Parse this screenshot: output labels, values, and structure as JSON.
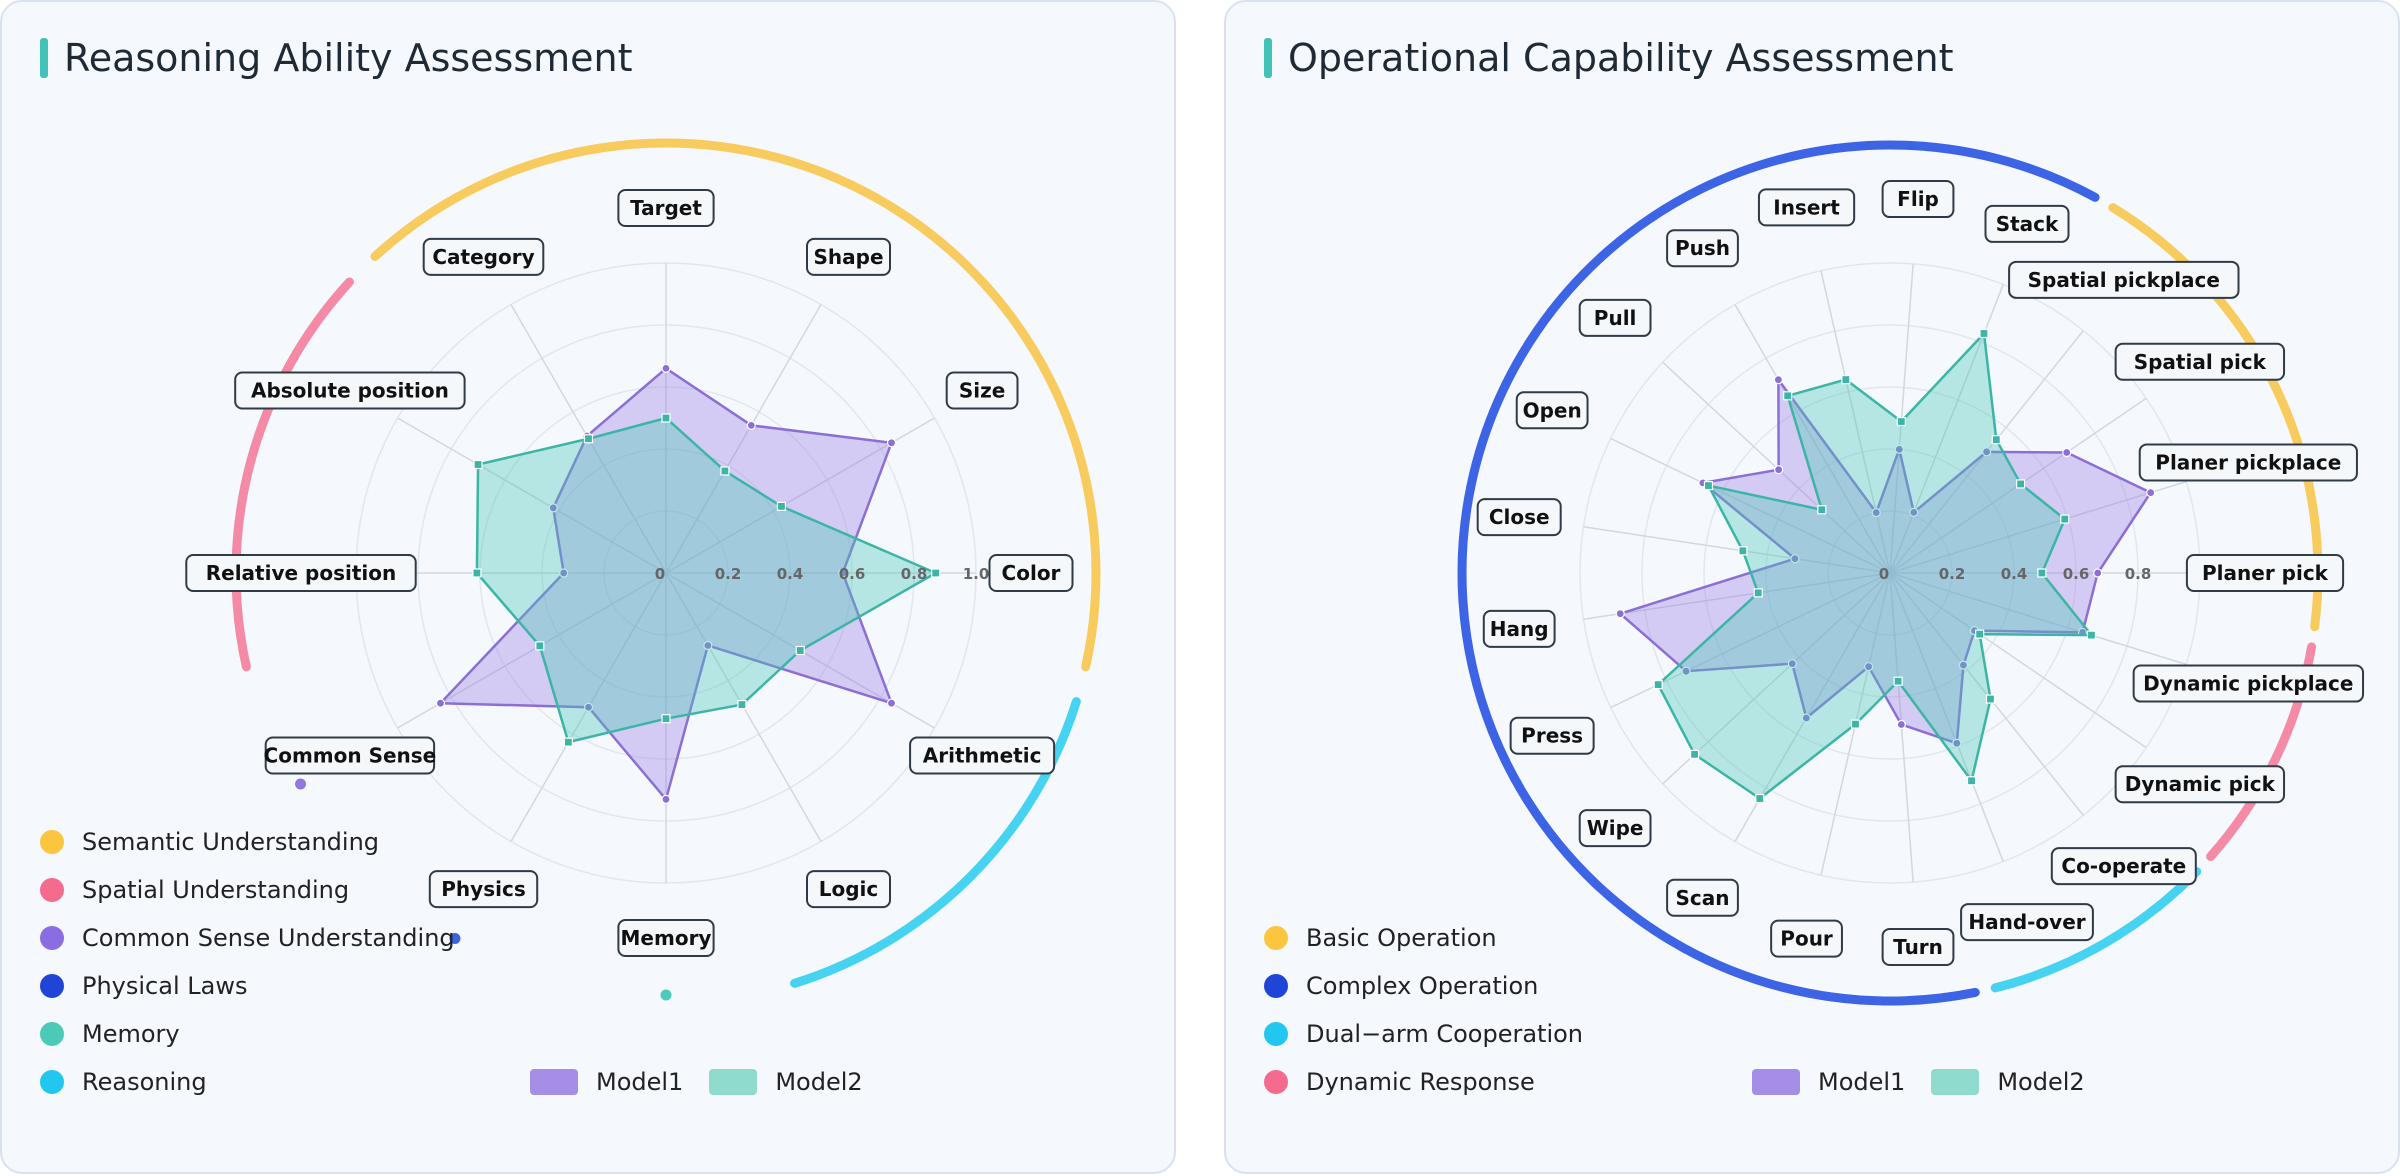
{
  "colors": {
    "model1_fill": "rgba(150,120,225,0.35)",
    "model1_stroke": "#8b6fd4",
    "model2_fill": "rgba(80,200,185,0.38)",
    "model2_stroke": "#3cb5a6",
    "grid": "#e2e6ee",
    "tick_text": "#666666",
    "label_border": "#2f3b47",
    "label_bg": "#f4f8fb",
    "title_accent": "#43c2b8"
  },
  "charts": [
    {
      "title": "Reasoning Ability Assessment",
      "legend": [
        {
          "label": "Semantic Understanding",
          "color": "#fbc53f"
        },
        {
          "label": "Spatial Understanding",
          "color": "#f56b8d"
        },
        {
          "label": "Common Sense Understanding",
          "color": "#8a6de0"
        },
        {
          "label": "Physical Laws",
          "color": "#1f44d6"
        },
        {
          "label": "Memory",
          "color": "#4ccab8"
        },
        {
          "label": "Reasoning",
          "color": "#22c7f0"
        }
      ],
      "model_legend": [
        {
          "label": "Model1",
          "color": "#a58ee6"
        },
        {
          "label": "Model2",
          "color": "#8fdccf"
        }
      ]
    },
    {
      "title": "Operational Capability Assessment",
      "legend": [
        {
          "label": "Basic Operation",
          "color": "#fbc53f"
        },
        {
          "label": "Complex Operation",
          "color": "#1f44d6"
        },
        {
          "label": "Dual−arm Cooperation",
          "color": "#22c7f0"
        },
        {
          "label": "Dynamic Response",
          "color": "#f56b8d"
        }
      ],
      "model_legend": [
        {
          "label": "Model1",
          "color": "#a58ee6"
        },
        {
          "label": "Model2",
          "color": "#8fdccf"
        }
      ]
    }
  ],
  "chart_data": [
    {
      "type": "radar",
      "title": "Reasoning Ability Assessment",
      "axes": [
        "Color",
        "Size",
        "Shape",
        "Target",
        "Category",
        "Absolute position",
        "Relative position",
        "Common Sense",
        "Physics",
        "Memory",
        "Logic",
        "Arithmetic"
      ],
      "rlim": [
        0,
        1.0
      ],
      "rticks": [
        "0",
        "0.2",
        "0.4",
        "0.6",
        "0.8",
        "1.0"
      ],
      "series": [
        {
          "name": "Model1",
          "values": [
            0.57,
            0.84,
            0.55,
            0.66,
            0.51,
            0.42,
            0.33,
            0.84,
            0.5,
            0.73,
            0.27,
            0.84
          ]
        },
        {
          "name": "Model2",
          "values": [
            0.87,
            0.43,
            0.38,
            0.5,
            0.5,
            0.7,
            0.61,
            0.47,
            0.63,
            0.47,
            0.49,
            0.5
          ]
        }
      ],
      "category_arcs": [
        {
          "name": "Semantic Understanding",
          "color": "#f7cb5e",
          "from_axis": "Color",
          "to_axis": "Category"
        },
        {
          "name": "Spatial Understanding",
          "color": "#f48aa6",
          "from_axis": "Absolute position",
          "to_axis": "Relative position"
        },
        {
          "name": "Common Sense Understanding",
          "color": "#8f78de",
          "marker_axis": "Common Sense"
        },
        {
          "name": "Physical Laws",
          "color": "#3e64e6",
          "marker_axis": "Physics"
        },
        {
          "name": "Memory",
          "color": "#4fcbbd",
          "marker_axis": "Memory"
        },
        {
          "name": "Reasoning",
          "color": "#46d3f2",
          "from_axis": "Logic",
          "to_axis": "Arithmetic"
        }
      ]
    },
    {
      "type": "radar",
      "title": "Operational Capability Assessment",
      "axes": [
        "Planer pick",
        "Planer pickplace",
        "Spatial pick",
        "Spatial pickplace",
        "Stack",
        "Flip",
        "Insert",
        "Push",
        "Pull",
        "Open",
        "Close",
        "Hang",
        "Press",
        "Wipe",
        "Scan",
        "Pour",
        "Turn",
        "Hand-over",
        "Co-operate",
        "Dynamic pick",
        "Dynamic pickplace"
      ],
      "rlim": [
        0,
        1.0
      ],
      "rticks": [
        "0",
        "0.2",
        "0.4",
        "0.6",
        "0.8",
        "1.0"
      ],
      "series": [
        {
          "name": "Model1",
          "values": [
            0.67,
            0.88,
            0.69,
            0.5,
            0.21,
            0.4,
            0.2,
            0.72,
            0.49,
            0.67,
            0.31,
            0.88,
            0.73,
            0.43,
            0.54,
            0.31,
            0.49,
            0.59,
            0.38,
            0.33,
            0.65
          ]
        },
        {
          "name": "Model2",
          "values": [
            0.49,
            0.59,
            0.51,
            0.55,
            0.83,
            0.49,
            0.64,
            0.66,
            0.3,
            0.65,
            0.48,
            0.43,
            0.83,
            0.86,
            0.84,
            0.5,
            0.35,
            0.72,
            0.52,
            0.35,
            0.68
          ]
        }
      ],
      "category_arcs": [
        {
          "name": "Basic Operation",
          "color": "#f7cb5e",
          "from_axis": "Planer pick",
          "to_axis": "Spatial pickplace"
        },
        {
          "name": "Complex Operation",
          "color": "#3e64e6",
          "from_axis": "Stack",
          "to_axis": "Turn"
        },
        {
          "name": "Dual−arm Cooperation",
          "color": "#46d3f2",
          "from_axis": "Hand-over",
          "to_axis": "Co-operate"
        },
        {
          "name": "Dynamic Response",
          "color": "#f48aa6",
          "from_axis": "Dynamic pick",
          "to_axis": "Dynamic pickplace"
        }
      ]
    }
  ]
}
